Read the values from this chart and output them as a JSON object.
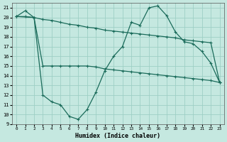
{
  "xlabel": "Humidex (Indice chaleur)",
  "background_color": "#c5e8e0",
  "grid_color": "#9ecfc5",
  "line_color": "#1a6b5a",
  "xlim": [
    -0.5,
    23.5
  ],
  "ylim": [
    9,
    21.5
  ],
  "yticks": [
    9,
    10,
    11,
    12,
    13,
    14,
    15,
    16,
    17,
    18,
    19,
    20,
    21
  ],
  "xticks": [
    0,
    1,
    2,
    3,
    4,
    5,
    6,
    7,
    8,
    9,
    10,
    11,
    12,
    13,
    14,
    15,
    16,
    17,
    18,
    19,
    20,
    21,
    22,
    23
  ],
  "line1_x": [
    0,
    1,
    2,
    3,
    4,
    5,
    6,
    7,
    8,
    9,
    10,
    11,
    12,
    13,
    14,
    15,
    16,
    17,
    18,
    19,
    20,
    21,
    22,
    23
  ],
  "line1_y": [
    20.1,
    20.1,
    20.0,
    19.8,
    19.7,
    19.5,
    19.3,
    19.2,
    19.0,
    18.9,
    18.7,
    18.6,
    18.5,
    18.4,
    18.3,
    18.2,
    18.1,
    18.0,
    17.9,
    17.7,
    17.6,
    17.5,
    17.4,
    13.3
  ],
  "line2_x": [
    0,
    1,
    2,
    3,
    4,
    5,
    6,
    7,
    8,
    9,
    10,
    11,
    12,
    13,
    14,
    15,
    16,
    17,
    18,
    19,
    20,
    21,
    22,
    23
  ],
  "line2_y": [
    20.1,
    20.7,
    20.0,
    12.0,
    11.3,
    11.0,
    9.8,
    9.5,
    10.5,
    12.3,
    14.5,
    16.0,
    17.0,
    19.5,
    19.2,
    21.0,
    21.2,
    20.2,
    18.5,
    17.5,
    17.3,
    16.5,
    15.3,
    13.3
  ],
  "line3_x": [
    0,
    2,
    3,
    4,
    5,
    6,
    7,
    8,
    9,
    10,
    11,
    12,
    13,
    14,
    15,
    16,
    17,
    18,
    19,
    20,
    21,
    22,
    23
  ],
  "line3_y": [
    20.1,
    20.0,
    15.0,
    15.0,
    15.0,
    15.0,
    15.0,
    15.0,
    14.9,
    14.7,
    14.6,
    14.5,
    14.4,
    14.3,
    14.2,
    14.1,
    14.0,
    13.9,
    13.8,
    13.7,
    13.6,
    13.5,
    13.3
  ]
}
